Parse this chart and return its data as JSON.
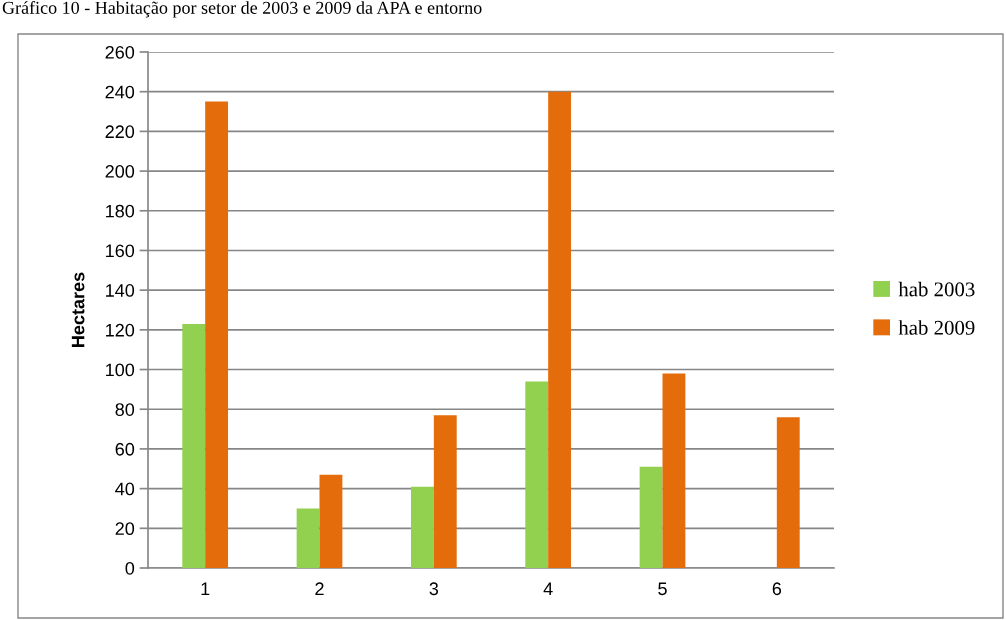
{
  "chart_data": {
    "type": "bar",
    "title": "Gráfico 10 - Habitação por setor de 2003 e 2009 da APA e entorno",
    "ylabel": "Hectares",
    "categories": [
      "1",
      "2",
      "3",
      "4",
      "5",
      "6"
    ],
    "series": [
      {
        "name": "hab 2003",
        "color": "#92d050",
        "values": [
          123,
          30,
          41,
          94,
          51,
          null
        ]
      },
      {
        "name": "hab 2009",
        "color": "#e46c0a",
        "values": [
          235,
          47,
          77,
          240,
          98,
          76
        ]
      }
    ],
    "ylim": [
      0,
      260
    ],
    "yticks": [
      0,
      20,
      40,
      60,
      80,
      100,
      120,
      140,
      160,
      180,
      200,
      220,
      240,
      260
    ],
    "grid": "y",
    "legend": "right"
  }
}
